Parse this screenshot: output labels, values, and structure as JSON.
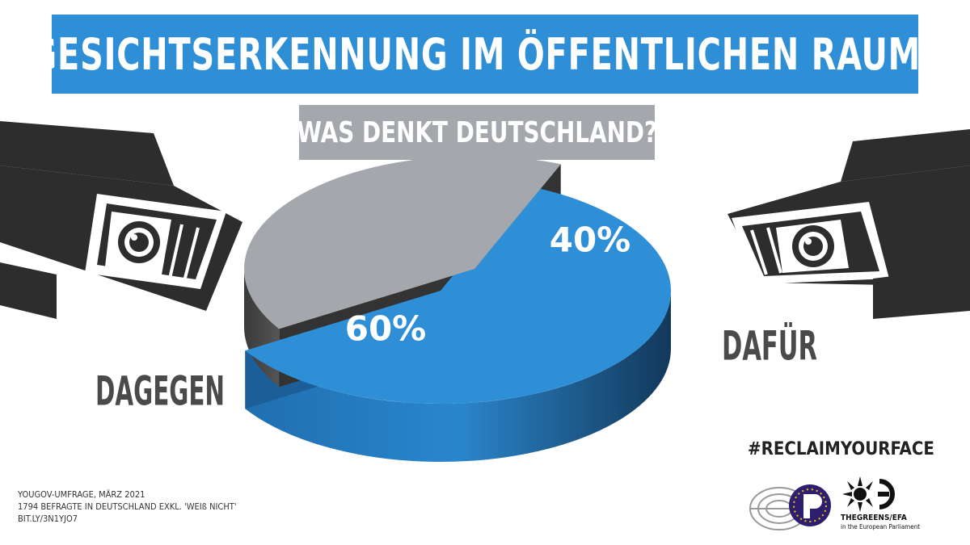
{
  "header": {
    "title": "GESICHTSERKENNUNG IM ÖFFENTLICHEN RAUM?",
    "subtitle": "WAS DENKT DEUTSCHLAND?"
  },
  "chart_data": {
    "type": "pie",
    "style": "3d-exploded",
    "slices": [
      {
        "label": "DAGEGEN",
        "value": 60,
        "value_label": "60%",
        "color": "#2f8fd6"
      },
      {
        "label": "DAFÜR",
        "value": 40,
        "value_label": "40%",
        "color": "#a4a7ab"
      }
    ],
    "legend": "none"
  },
  "footnote": {
    "lines": [
      "YOUGOV-UMFRAGE, MÄRZ 2021",
      "1794 BEFRAGTE IN DEUTSCHLAND EXKL. 'WEIß NICHT'",
      "BIT.LY/3N1YJO7"
    ]
  },
  "branding": {
    "hashtag": "#RECLAIMYOURFACE",
    "greens_name": "THEGREENS/EFA",
    "greens_sub": "in the European Parliament",
    "icons": [
      "cctv-camera-icon",
      "european-parliament-logo",
      "pirate-party-logo",
      "greens-efa-logo"
    ]
  },
  "colors": {
    "blue": "#2f8fd6",
    "gray": "#a4a7ab",
    "dark_text": "#4a4a4a"
  }
}
